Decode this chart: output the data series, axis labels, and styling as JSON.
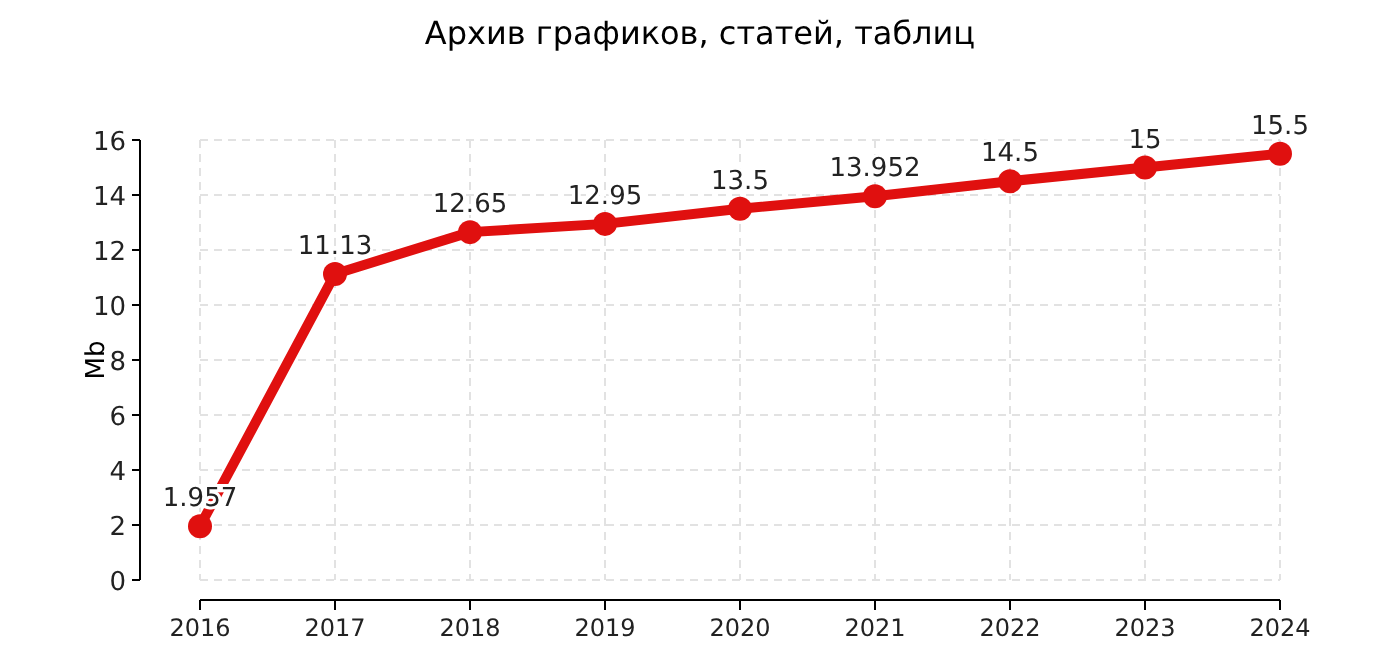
{
  "chart_data": {
    "type": "line",
    "title": "Архив графиков, статей, таблиц",
    "ylabel": "Mb",
    "categories": [
      "2016",
      "2017",
      "2018",
      "2019",
      "2020",
      "2021",
      "2022",
      "2023",
      "2024"
    ],
    "series": [
      {
        "color": "#e0100f",
        "values": [
          1.957,
          11.13,
          12.65,
          12.95,
          13.5,
          13.952,
          14.5,
          15,
          15.5
        ]
      }
    ],
    "ylim": [
      0,
      16
    ],
    "yticks": [
      0,
      2,
      4,
      6,
      8,
      10,
      12,
      14,
      16
    ],
    "grid": true,
    "marker": "circle",
    "line_style": "solid",
    "data_labels": true
  }
}
